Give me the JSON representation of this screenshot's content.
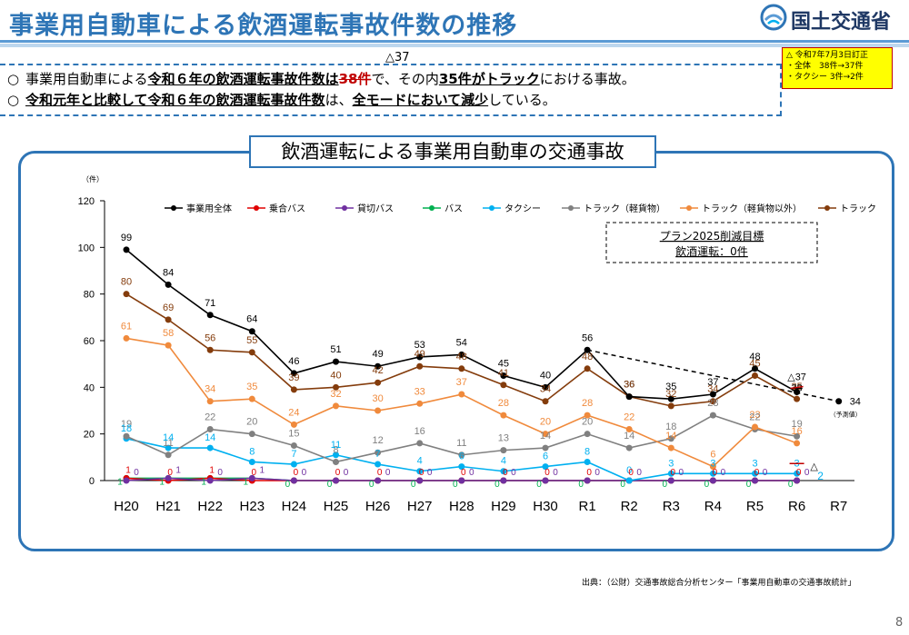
{
  "header": {
    "title": "事業用自動車による飲酒運転事故件数の推移",
    "logo_text": "国土交通省"
  },
  "summary": {
    "bullet_mark": "○",
    "line1": {
      "prefix": "事業用自動車による",
      "underlined": "令和６年の飲酒運転事故件数は",
      "struck": "38件",
      "mid": "で、その内",
      "bold2": "35件がトラック",
      "suffix": "における事故。"
    },
    "line2": {
      "underlined1": "令和元年と比較して令和６年の飲酒運転事故件数",
      "mid": "は、",
      "underlined2": "全モードにおいて減少",
      "suffix": "している。"
    },
    "correction_mark": "△37"
  },
  "correction_note": {
    "line1": "△ 令和7年7月3日訂正",
    "line2": "・全体　38件→37件",
    "line3": "・タクシー 3件→2件"
  },
  "panel_title": "飲酒運転による事業用自動車の交通事故",
  "target_box": {
    "line1": "プラン2025削減目標",
    "line2": "飲酒運転：0件"
  },
  "source": "出典：（公財）交通事故総合分析センター「事業用自動車の交通事故統計」",
  "page_number": "8",
  "chart_data": {
    "type": "line",
    "ylabel": "（件）",
    "ylim": [
      0,
      120
    ],
    "yticks": [
      0,
      20,
      40,
      60,
      80,
      100,
      120
    ],
    "categories": [
      "H20",
      "H21",
      "H22",
      "H23",
      "H24",
      "H25",
      "H26",
      "H27",
      "H28",
      "H29",
      "H30",
      "R1",
      "R2",
      "R3",
      "R4",
      "R5",
      "R6",
      "R7"
    ],
    "series": [
      {
        "name": "事業用全体",
        "color": "#000000",
        "values": [
          99,
          84,
          71,
          64,
          46,
          51,
          49,
          53,
          54,
          45,
          40,
          56,
          36,
          35,
          37,
          48,
          38,
          null
        ]
      },
      {
        "name": "乗合バス",
        "color": "#e00000",
        "values": [
          1,
          0,
          1,
          0,
          0,
          0,
          0,
          0,
          0,
          0,
          0,
          0,
          0,
          0,
          0,
          0,
          0,
          null
        ]
      },
      {
        "name": "貸切バス",
        "color": "#7030a0",
        "values": [
          0,
          1,
          0,
          1,
          0,
          0,
          0,
          0,
          0,
          0,
          0,
          0,
          0,
          0,
          0,
          0,
          0,
          null
        ]
      },
      {
        "name": "バス",
        "color": "#00b050",
        "values": [
          1,
          1,
          1,
          1,
          0,
          0,
          0,
          0,
          0,
          0,
          0,
          0,
          0,
          0,
          0,
          0,
          0,
          null
        ]
      },
      {
        "name": "タクシー",
        "color": "#00b0f0",
        "values": [
          18,
          14,
          14,
          8,
          7,
          11,
          7,
          4,
          6,
          4,
          6,
          8,
          0,
          3,
          3,
          3,
          3,
          null
        ]
      },
      {
        "name": "トラック（軽貨物）",
        "color": "#808080",
        "values": [
          19,
          11,
          22,
          20,
          15,
          8,
          12,
          16,
          11,
          13,
          14,
          20,
          14,
          18,
          28,
          22,
          19,
          null
        ]
      },
      {
        "name": "トラック（軽貨物以外）",
        "color": "#f08a3c",
        "values": [
          61,
          58,
          34,
          35,
          24,
          32,
          30,
          33,
          37,
          28,
          20,
          28,
          22,
          14,
          6,
          23,
          16,
          null
        ]
      },
      {
        "name": "トラック",
        "color": "#843c0c",
        "values": [
          80,
          69,
          56,
          55,
          39,
          40,
          42,
          49,
          48,
          41,
          34,
          48,
          36,
          32,
          34,
          45,
          35,
          null
        ]
      }
    ],
    "forecast": {
      "category": "R7",
      "value": 34,
      "label": "（予測値）"
    },
    "corrections": [
      {
        "series": "事業用全体",
        "old": 38,
        "new": 37
      },
      {
        "series": "タクシー",
        "old": 3,
        "new": 2
      }
    ],
    "trend_line": {
      "from": "R1",
      "from_value": 56,
      "to": "R7",
      "to_value": 34
    }
  }
}
